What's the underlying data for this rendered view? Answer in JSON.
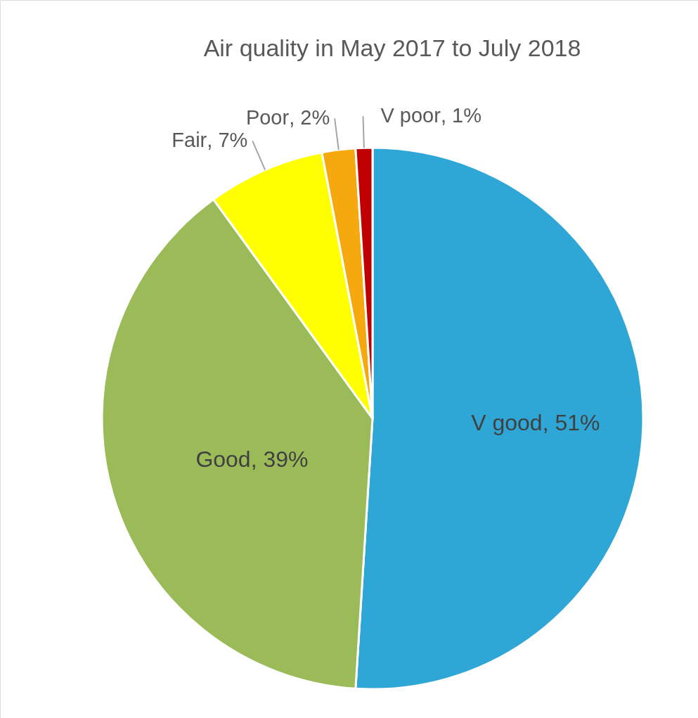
{
  "chart_data": {
    "type": "pie",
    "title": "Air quality in May 2017 to July 2018",
    "categories": [
      "V good",
      "Good",
      "Fair",
      "Poor",
      "V poor"
    ],
    "values": [
      51,
      39,
      7,
      2,
      1
    ],
    "colors": [
      "#2ea7d6",
      "#9bbb59",
      "#ffff00",
      "#f5a90f",
      "#c00000"
    ],
    "value_labels": [
      ", 51%",
      ", 39%",
      ", 7%",
      ", 2%",
      " , 1%"
    ]
  }
}
